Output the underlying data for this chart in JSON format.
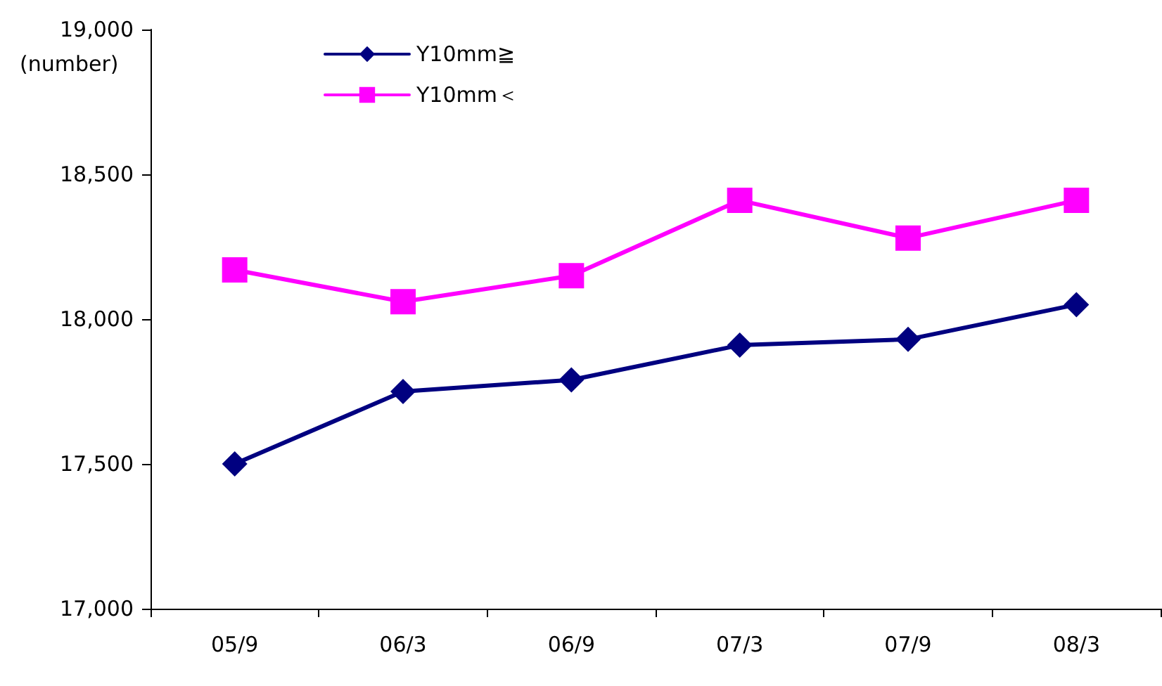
{
  "chart_data": {
    "type": "line",
    "ylabel": "(number)",
    "categories": [
      "05/9",
      "06/3",
      "06/9",
      "07/3",
      "07/9",
      "08/3"
    ],
    "series": [
      {
        "name": "Y10mm≧",
        "color": "#000080",
        "marker": "diamond",
        "values": [
          17500,
          17750,
          17790,
          17910,
          17930,
          18050
        ]
      },
      {
        "name": "Y10mm＜",
        "color": "#ff00ff",
        "marker": "square",
        "values": [
          18170,
          18060,
          18150,
          18410,
          18280,
          18410
        ]
      }
    ],
    "ylim": [
      17000,
      19000
    ],
    "yticks": [
      {
        "value": 17000,
        "label": "17,000"
      },
      {
        "value": 17500,
        "label": "17,500"
      },
      {
        "value": 18000,
        "label": "18,000"
      },
      {
        "value": 18500,
        "label": "18,500"
      },
      {
        "value": 19000,
        "label": "19,000"
      }
    ],
    "grid": false,
    "legend": "top left",
    "line_style": "solid"
  }
}
